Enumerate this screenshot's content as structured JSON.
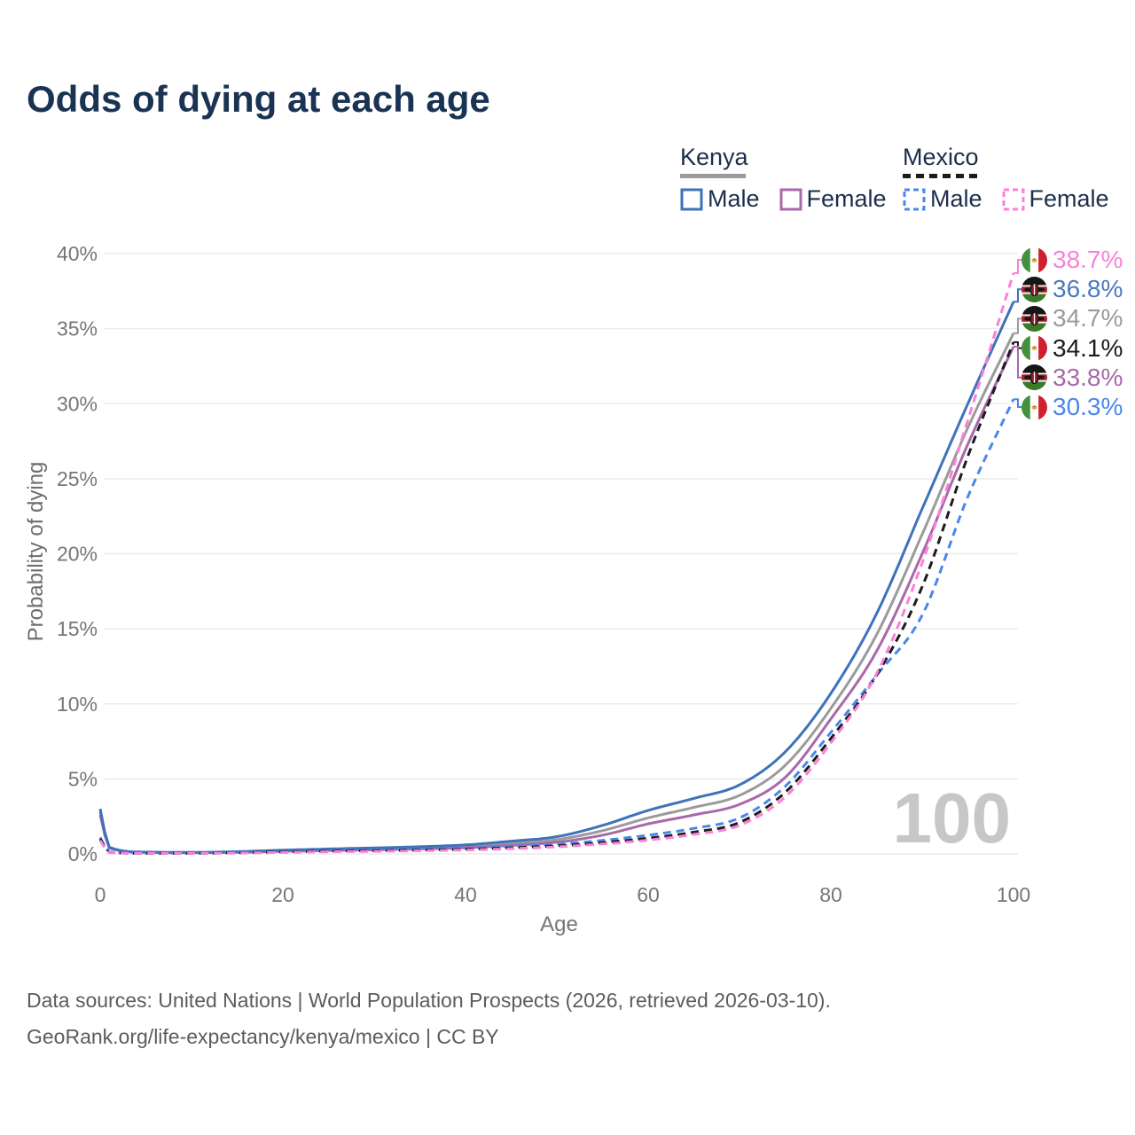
{
  "title": "Odds of dying at each age",
  "legend": {
    "kenya": {
      "title": "Kenya",
      "male": "Male",
      "female": "Female"
    },
    "mexico": {
      "title": "Mexico",
      "male": "Male",
      "female": "Female"
    }
  },
  "watermark": "100",
  "footer": {
    "line1": "Data sources: United Nations | World Population Prospects (2026, retrieved 2026-03-10).",
    "line2": "GeoRank.org/life-expectancy/kenya/mexico | CC BY"
  },
  "chart_data": {
    "type": "line",
    "title": "Odds of dying at each age",
    "xlabel": "Age",
    "ylabel": "Probability of dying",
    "xlim": [
      0,
      100
    ],
    "ylim": [
      0,
      40
    ],
    "x_ticks": [
      0,
      20,
      40,
      60,
      80,
      100
    ],
    "y_ticks": [
      "0%",
      "5%",
      "10%",
      "15%",
      "20%",
      "25%",
      "30%",
      "35%",
      "40%"
    ],
    "grid": "horizontal",
    "legend_position": "top-right",
    "units": "percent",
    "x": [
      0,
      1,
      5,
      10,
      15,
      20,
      25,
      30,
      35,
      40,
      45,
      50,
      55,
      60,
      65,
      70,
      75,
      80,
      85,
      90,
      95,
      100
    ],
    "series": [
      {
        "key": "kenya_all",
        "name": "Kenya (both sexes)",
        "country": "Kenya",
        "style": "solid",
        "color": "#9b9b9b",
        "values": [
          2.8,
          0.42,
          0.11,
          0.09,
          0.13,
          0.21,
          0.27,
          0.33,
          0.4,
          0.5,
          0.7,
          0.95,
          1.55,
          2.4,
          3.1,
          3.9,
          5.9,
          9.7,
          14.6,
          21.3,
          28.4,
          34.7
        ]
      },
      {
        "key": "kenya_female",
        "name": "Kenya Female",
        "country": "Kenya",
        "style": "solid",
        "color": "#a869aa",
        "values": [
          2.6,
          0.4,
          0.1,
          0.08,
          0.11,
          0.17,
          0.22,
          0.27,
          0.33,
          0.41,
          0.57,
          0.78,
          1.25,
          2.0,
          2.6,
          3.3,
          5.1,
          9.0,
          13.5,
          20.0,
          27.3,
          33.8
        ]
      },
      {
        "key": "kenya_male",
        "name": "Kenya Male",
        "country": "Kenya",
        "style": "solid",
        "color": "#3e72ba",
        "values": [
          3.0,
          0.45,
          0.12,
          0.1,
          0.15,
          0.25,
          0.33,
          0.4,
          0.48,
          0.6,
          0.85,
          1.15,
          1.9,
          2.9,
          3.7,
          4.6,
          6.8,
          10.7,
          16.0,
          23.0,
          30.0,
          36.8
        ]
      },
      {
        "key": "mexico_male",
        "name": "Mexico Male",
        "country": "Mexico",
        "style": "dashed",
        "color": "#4b87e8",
        "values": [
          1.1,
          0.12,
          0.05,
          0.05,
          0.1,
          0.18,
          0.24,
          0.28,
          0.32,
          0.38,
          0.5,
          0.65,
          0.9,
          1.25,
          1.7,
          2.4,
          4.5,
          8.1,
          11.9,
          15.9,
          23.8,
          30.3
        ]
      },
      {
        "key": "mexico_all",
        "name": "Mexico (both sexes)",
        "country": "Mexico",
        "style": "dashed",
        "color": "#1c1c1c",
        "values": [
          1.0,
          0.11,
          0.04,
          0.04,
          0.08,
          0.14,
          0.19,
          0.22,
          0.26,
          0.31,
          0.41,
          0.54,
          0.75,
          1.05,
          1.45,
          2.1,
          4.1,
          7.7,
          11.9,
          17.8,
          26.5,
          34.1
        ]
      },
      {
        "key": "mexico_female",
        "name": "Mexico Female",
        "country": "Mexico",
        "style": "dashed",
        "color": "#fb80d8",
        "values": [
          0.9,
          0.1,
          0.04,
          0.04,
          0.06,
          0.1,
          0.14,
          0.17,
          0.21,
          0.26,
          0.35,
          0.47,
          0.66,
          0.92,
          1.3,
          1.9,
          3.8,
          7.4,
          12.0,
          19.4,
          28.9,
          38.7
        ]
      }
    ],
    "end_labels": [
      {
        "flag": "mexico",
        "series": "mexico_female",
        "value": "38.7%",
        "color": "#fb80d8"
      },
      {
        "flag": "kenya",
        "series": "kenya_male",
        "value": "36.8%",
        "color": "#4a7bc0"
      },
      {
        "flag": "kenya",
        "series": "kenya_all",
        "value": "34.7%",
        "color": "#9b9b9b"
      },
      {
        "flag": "mexico",
        "series": "mexico_all",
        "value": "34.1%",
        "color": "#1c1c1c"
      },
      {
        "flag": "kenya",
        "series": "kenya_female",
        "value": "33.8%",
        "color": "#a869aa"
      },
      {
        "flag": "mexico",
        "series": "mexico_male",
        "value": "30.3%",
        "color": "#4b87e8"
      }
    ]
  }
}
